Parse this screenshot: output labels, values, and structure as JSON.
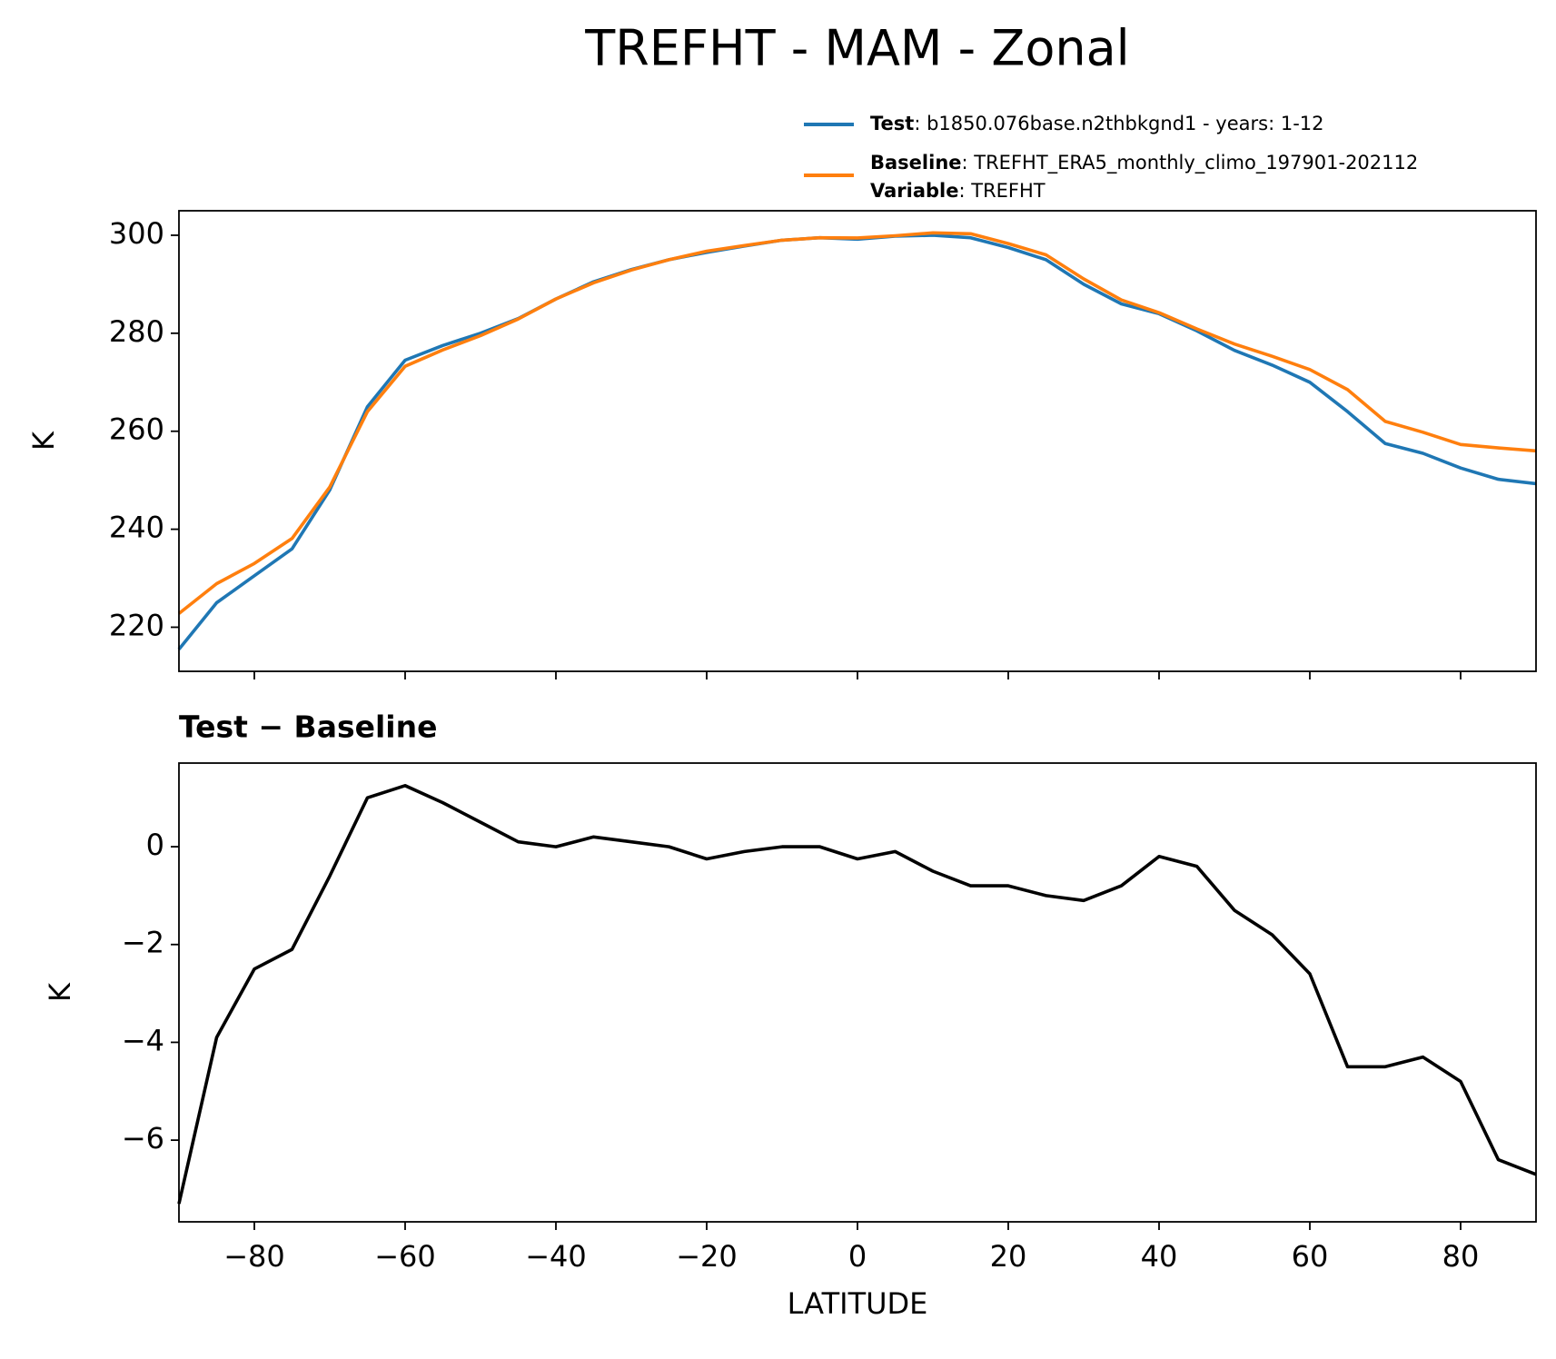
{
  "chart_data": [
    {
      "type": "line",
      "title": "TREFHT - MAM - Zonal",
      "ylabel": "K",
      "x": [
        -90,
        -85,
        -80,
        -75,
        -70,
        -65,
        -60,
        -55,
        -50,
        -45,
        -40,
        -35,
        -30,
        -25,
        -20,
        -15,
        -10,
        -5,
        0,
        5,
        10,
        15,
        20,
        25,
        30,
        35,
        40,
        45,
        50,
        55,
        60,
        65,
        70,
        75,
        80,
        85,
        90
      ],
      "series": [
        {
          "name": "Test",
          "label": ": b1850.076base.n2thbkgnd1 - years: 1-12",
          "color": "#1f77b4",
          "values": [
            215.5,
            225,
            230.5,
            236,
            248,
            265,
            274.5,
            277.5,
            280,
            283,
            287,
            290.5,
            293,
            295,
            296.5,
            297.8,
            299,
            299.5,
            299.2,
            299.8,
            300,
            299.5,
            297.5,
            295,
            290,
            286,
            284,
            280.5,
            276.5,
            273.5,
            270,
            264,
            257.5,
            255.5,
            252.5,
            250.2,
            249.3
          ]
        },
        {
          "name": "Baseline",
          "label": ": TREFHT_ERA5_monthly_climo_197901-202112",
          "color": "#ff7f0e",
          "values": [
            222.8,
            228.9,
            233,
            238.1,
            248.6,
            264,
            273.25,
            276.6,
            279.5,
            282.9,
            287,
            290.3,
            292.9,
            295,
            296.75,
            297.9,
            299,
            299.5,
            299.45,
            299.9,
            300.5,
            300.3,
            298.3,
            296,
            291.1,
            286.8,
            284.2,
            280.9,
            277.8,
            275.3,
            272.6,
            268.5,
            262,
            259.8,
            257.3,
            256.6,
            256
          ]
        }
      ],
      "legend_extra": {
        "name": "Variable",
        "label": ": TREFHT"
      },
      "xlim": [
        -90,
        90
      ],
      "xticks": [
        -80,
        -60,
        -40,
        -20,
        0,
        20,
        40,
        60,
        80
      ],
      "ylim": [
        211,
        305
      ],
      "yticks": [
        220,
        240,
        260,
        280,
        300
      ]
    },
    {
      "type": "line",
      "title": "Test − Baseline",
      "xlabel": "LATITUDE",
      "ylabel": "K",
      "x": [
        -90,
        -85,
        -80,
        -75,
        -70,
        -65,
        -60,
        -55,
        -50,
        -45,
        -40,
        -35,
        -30,
        -25,
        -20,
        -15,
        -10,
        -5,
        0,
        5,
        10,
        15,
        20,
        25,
        30,
        35,
        40,
        45,
        50,
        55,
        60,
        65,
        70,
        75,
        80,
        85,
        90
      ],
      "series": [
        {
          "color": "#000000",
          "values": [
            -7.3,
            -3.9,
            -2.5,
            -2.1,
            -0.6,
            1.0,
            1.25,
            0.9,
            0.5,
            0.1,
            0.0,
            0.2,
            0.1,
            0.0,
            -0.25,
            -0.1,
            0.0,
            0.0,
            -0.25,
            -0.1,
            -0.5,
            -0.8,
            -0.8,
            -1.0,
            -1.1,
            -0.8,
            -0.2,
            -0.4,
            -1.3,
            -1.8,
            -2.6,
            -4.5,
            -4.5,
            -4.3,
            -4.8,
            -6.4,
            -6.7
          ]
        }
      ],
      "xlim": [
        -90,
        90
      ],
      "xticks": [
        {
          "value": -80,
          "label": "−80"
        },
        {
          "value": -60,
          "label": "−60"
        },
        {
          "value": -40,
          "label": "−40"
        },
        {
          "value": -20,
          "label": "−20"
        },
        0,
        20,
        40,
        60,
        80
      ],
      "ylim": [
        -7.67,
        1.71
      ],
      "yticks": [
        {
          "value": -6,
          "label": "−6"
        },
        {
          "value": -4,
          "label": "−4"
        },
        {
          "value": -2,
          "label": "−2"
        },
        0
      ]
    }
  ]
}
